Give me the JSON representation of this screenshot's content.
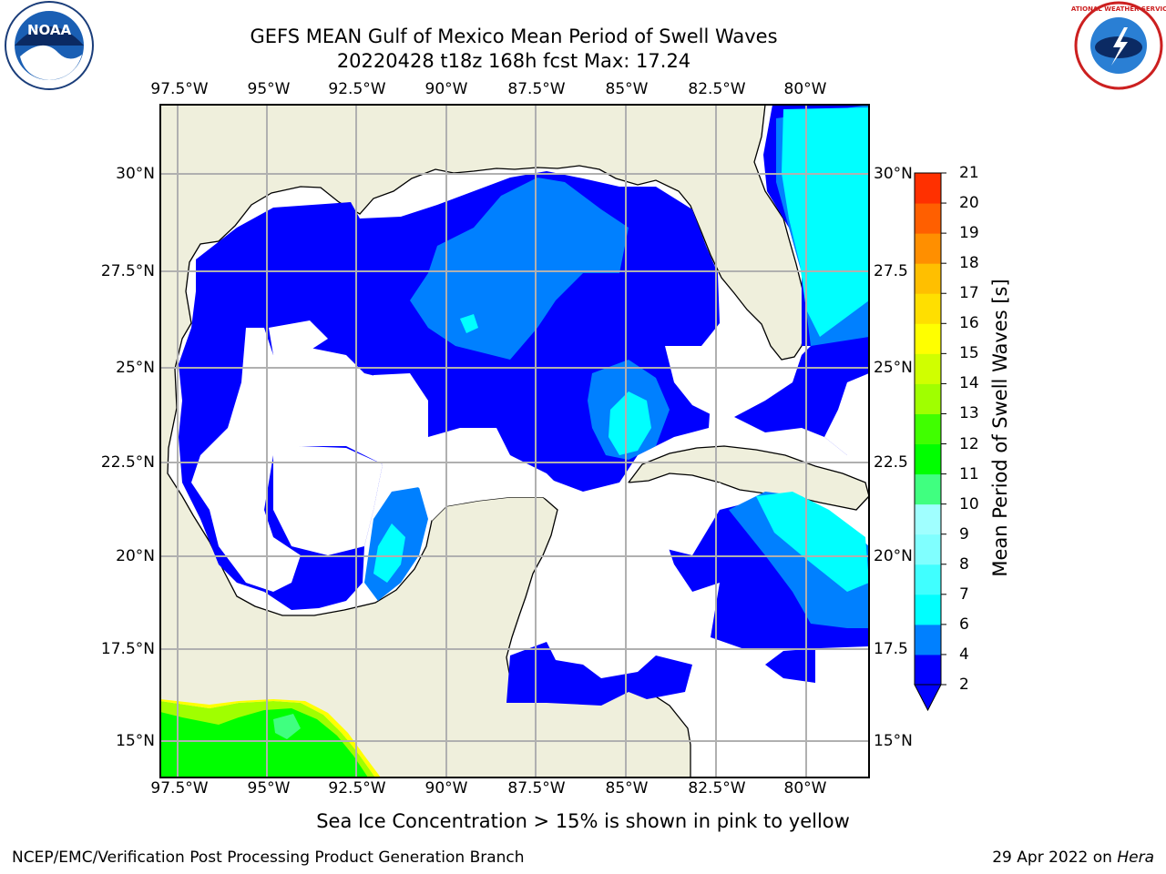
{
  "header": {
    "title_line1": "GEFS MEAN Gulf of Mexico Mean Period of Swell Waves",
    "title_line2": "20220428 t18z 168h fcst   Max: 17.24"
  },
  "map": {
    "lon_labels": [
      "97.5°W",
      "95°W",
      "92.5°W",
      "90°W",
      "87.5°W",
      "85°W",
      "82.5°W",
      "80°W"
    ],
    "lat_labels_left": [
      "30°N",
      "27.5°N",
      "25°N",
      "22.5°N",
      "20°N",
      "17.5°N",
      "15°N"
    ],
    "lat_labels_right": [
      "30°N",
      "27.5",
      "25°N",
      "22.5",
      "20°N",
      "17.5",
      "15°N"
    ],
    "colors": {
      "land": "#efefdc",
      "no_data": "#ffffff",
      "grid": "#b0b0b0"
    }
  },
  "colorbar": {
    "label": "Mean Period of Swell Waves [s]",
    "ticks": [
      "2",
      "4",
      "6",
      "7",
      "8",
      "9",
      "10",
      "11",
      "12",
      "13",
      "14",
      "15",
      "16",
      "17",
      "18",
      "19",
      "20",
      "21"
    ],
    "colors": [
      "#0000ff",
      "#0080ff",
      "#00ffff",
      "#40ffff",
      "#80ffff",
      "#a0ffff",
      "#40ff80",
      "#00ff00",
      "#40ff00",
      "#a0ff00",
      "#d0ff00",
      "#ffff00",
      "#ffdf00",
      "#ffbf00",
      "#ff8f00",
      "#ff5f00",
      "#ff3000",
      "#ff0000"
    ]
  },
  "note": "Sea Ice Concentration > 15% is shown in pink to yellow",
  "footer": {
    "left": "NCEP/EMC/Verification Post Processing Product Generation Branch",
    "right_date": "29 Apr 2022 on ",
    "right_host": "Hera"
  },
  "logos": {
    "left": "NOAA",
    "right_top": "NATIONAL WEATHER SERVICE"
  }
}
